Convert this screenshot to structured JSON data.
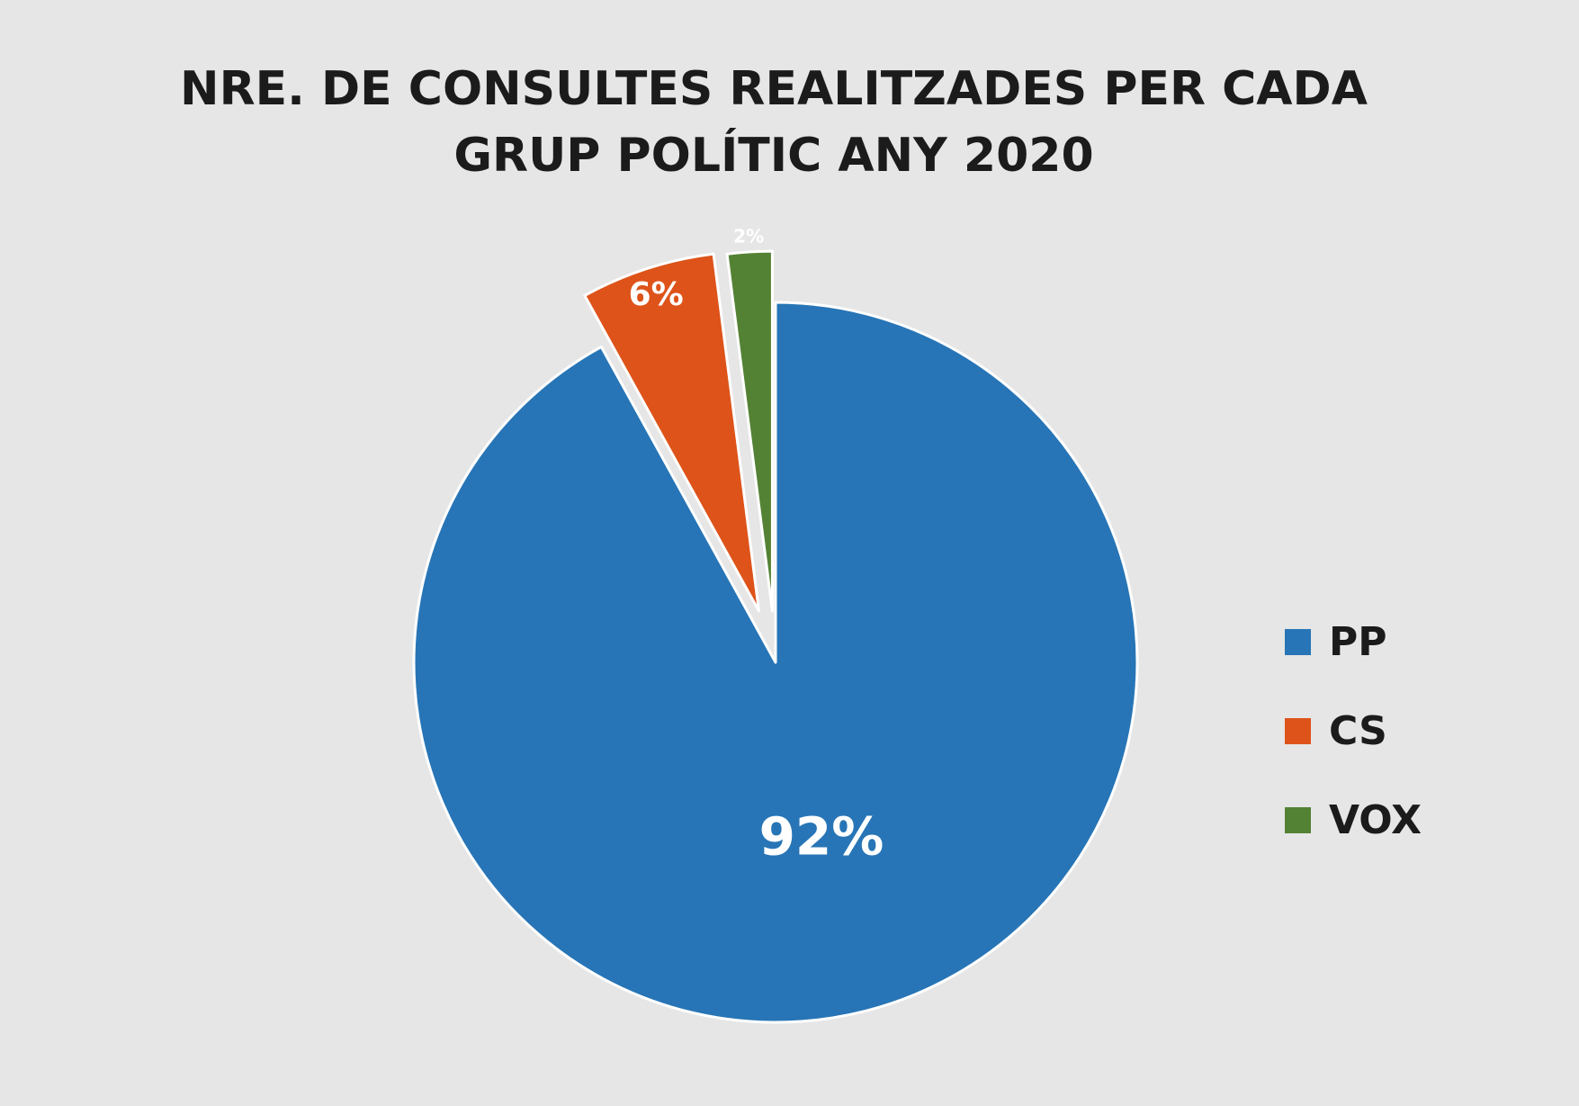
{
  "chart_data": {
    "type": "pie",
    "title_lines": [
      "NRE. DE CONSULTES REALITZADES PER CADA",
      "GRUP POLÍTIC ANY 2020"
    ],
    "categories": [
      "PP",
      "CS",
      "VOX"
    ],
    "values": [
      92,
      6,
      2
    ],
    "data_labels": [
      "92%",
      "6%",
      "2%"
    ],
    "colors": [
      "#2775b6",
      "#de5319",
      "#548235"
    ],
    "legend_position": "right"
  }
}
